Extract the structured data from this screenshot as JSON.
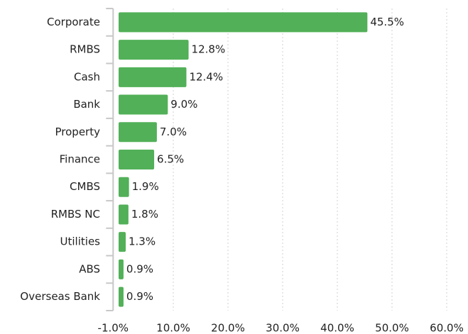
{
  "chart_data": {
    "type": "bar",
    "orientation": "horizontal",
    "categories": [
      "Corporate",
      "RMBS",
      "Cash",
      "Bank",
      "Property",
      "Finance",
      "CMBS",
      "RMBS NC",
      "Utilities",
      "ABS",
      "Overseas Bank"
    ],
    "values": [
      45.5,
      12.8,
      12.4,
      9.0,
      7.0,
      6.5,
      1.9,
      1.8,
      1.3,
      0.9,
      0.9
    ],
    "value_labels": [
      "45.5%",
      "12.8%",
      "12.4%",
      "9.0%",
      "7.0%",
      "6.5%",
      "1.9%",
      "1.8%",
      "1.3%",
      "0.9%",
      "0.9%"
    ],
    "color": "#52b058",
    "xlim": [
      -1,
      60
    ],
    "xticks": [
      {
        "value": -1,
        "label": "-1.0%"
      },
      {
        "value": 10,
        "label": "10.0%"
      },
      {
        "value": 20,
        "label": "20.0%"
      },
      {
        "value": 30,
        "label": "30.0%"
      },
      {
        "value": 40,
        "label": "40.0%"
      },
      {
        "value": 50,
        "label": "50.0%"
      },
      {
        "value": 60,
        "label": "60.0%"
      }
    ],
    "grid": true
  }
}
